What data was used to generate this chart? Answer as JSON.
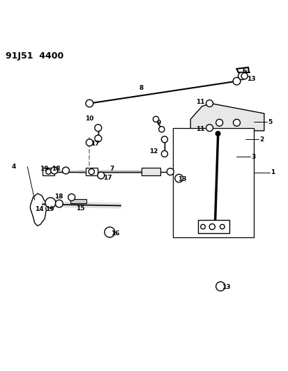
{
  "title": "91J51  4400",
  "background_color": "#ffffff",
  "line_color": "#000000",
  "fig_width": 4.14,
  "fig_height": 5.33,
  "dpi": 100
}
